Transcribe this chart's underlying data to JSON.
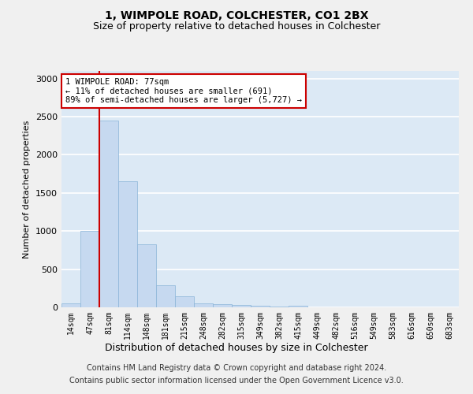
{
  "title1": "1, WIMPOLE ROAD, COLCHESTER, CO1 2BX",
  "title2": "Size of property relative to detached houses in Colchester",
  "xlabel": "Distribution of detached houses by size in Colchester",
  "ylabel": "Number of detached properties",
  "footer1": "Contains HM Land Registry data © Crown copyright and database right 2024.",
  "footer2": "Contains public sector information licensed under the Open Government Licence v3.0.",
  "annotation_line1": "1 WIMPOLE ROAD: 77sqm",
  "annotation_line2": "← 11% of detached houses are smaller (691)",
  "annotation_line3": "89% of semi-detached houses are larger (5,727) →",
  "bar_labels": [
    "14sqm",
    "47sqm",
    "81sqm",
    "114sqm",
    "148sqm",
    "181sqm",
    "215sqm",
    "248sqm",
    "282sqm",
    "315sqm",
    "349sqm",
    "382sqm",
    "415sqm",
    "449sqm",
    "482sqm",
    "516sqm",
    "549sqm",
    "583sqm",
    "616sqm",
    "650sqm",
    "683sqm"
  ],
  "bar_values": [
    50,
    1000,
    2450,
    1650,
    830,
    290,
    145,
    50,
    40,
    30,
    20,
    10,
    25,
    0,
    0,
    0,
    0,
    0,
    0,
    0,
    0
  ],
  "bar_color": "#c6d9f0",
  "bar_edge_color": "#8ab4d8",
  "red_line_x": 1.5,
  "ylim": [
    0,
    3100
  ],
  "yticks": [
    0,
    500,
    1000,
    1500,
    2000,
    2500,
    3000
  ],
  "bg_color": "#dce9f5",
  "grid_color": "#ffffff",
  "annotation_box_color": "#ffffff",
  "annotation_box_edge": "#cc0000",
  "red_line_color": "#cc0000",
  "title_fontsize": 10,
  "subtitle_fontsize": 9,
  "footer_fontsize": 7
}
